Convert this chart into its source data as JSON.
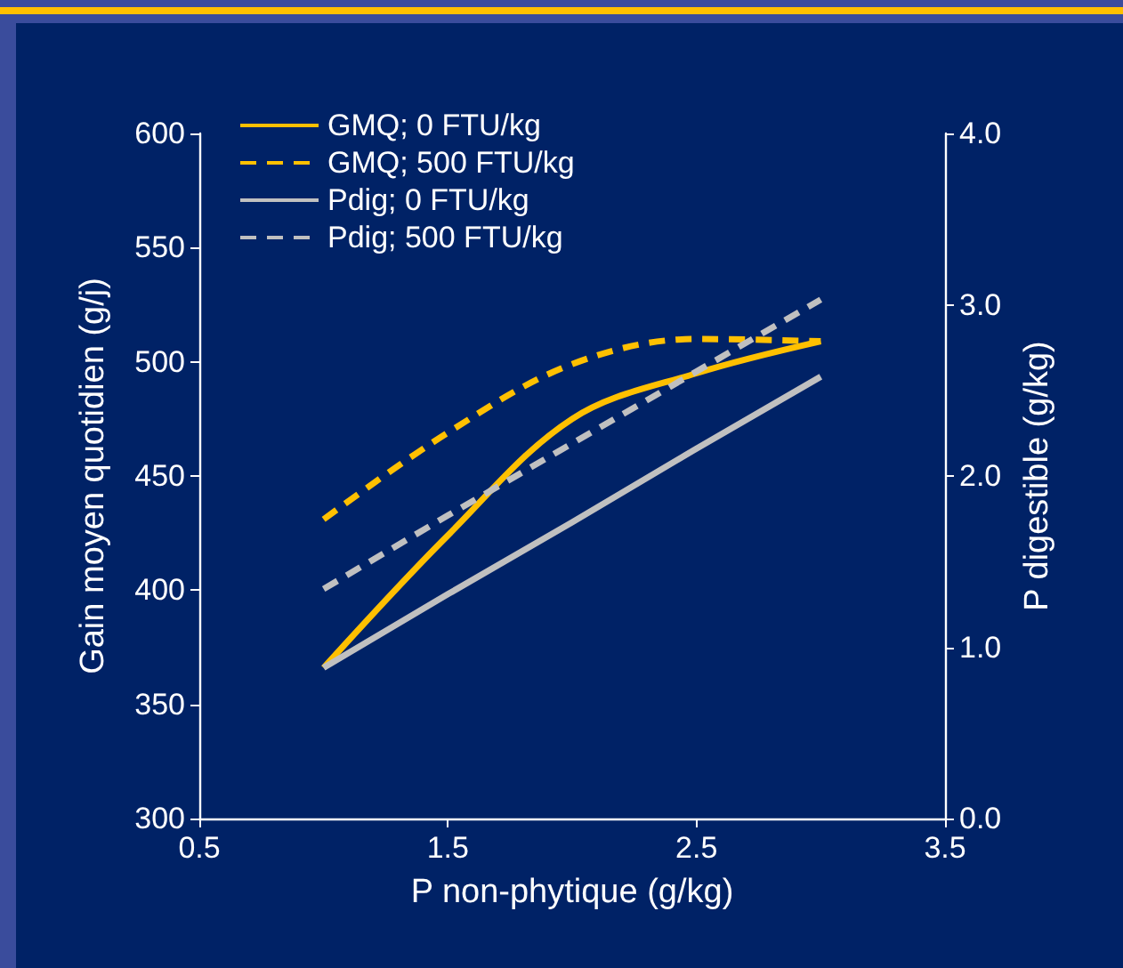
{
  "chart_data": {
    "type": "line",
    "xlabel": "P non-phytique (g/kg)",
    "ylabel": "Gain moyen quotidien (g/j)",
    "y2label": "P digestible (g/kg)",
    "x": [
      1,
      1.5,
      2,
      2.5,
      3
    ],
    "series": [
      {
        "name": "GMQ; 0 FTU/kg",
        "color": "#ffc000",
        "line_style": "solid",
        "values": [
          366,
          424,
          475,
          495,
          509
        ]
      },
      {
        "name": "GMQ; 500 FTU/kg",
        "color": "#ffc000",
        "line_style": "dashed",
        "values": [
          431,
          469,
          499,
          510,
          509
        ]
      },
      {
        "name": "Pdig; 0 FTU/kg",
        "color": "#c0c0c0",
        "line_style": "solid",
        "axis": "y2",
        "values": [
          0.88,
          1.31,
          1.73,
          2.16,
          2.58
        ]
      },
      {
        "name": "Pdig; 500 FTU/kg",
        "color": "#c0c0c0",
        "line_style": "dashed",
        "axis": "y2",
        "values": [
          1.34,
          1.77,
          2.19,
          2.61,
          3.03
        ]
      }
    ],
    "xlim": [
      0.5,
      3.5
    ],
    "xticks": [
      0.5,
      1.5,
      2.5,
      3.5
    ],
    "ylim": [
      300,
      600
    ],
    "yticks": [
      300,
      350,
      400,
      450,
      500,
      550,
      600
    ],
    "y2lim": [
      0,
      4
    ],
    "y2ticks": [
      {
        "value": 0,
        "label": "0.0"
      },
      {
        "value": 1,
        "label": "1.0"
      },
      {
        "value": 2,
        "label": "2.0"
      },
      {
        "value": 3,
        "label": "3.0"
      },
      {
        "value": 4,
        "label": "4.0"
      }
    ],
    "grid": false,
    "legend": "top left",
    "marker": "none"
  }
}
